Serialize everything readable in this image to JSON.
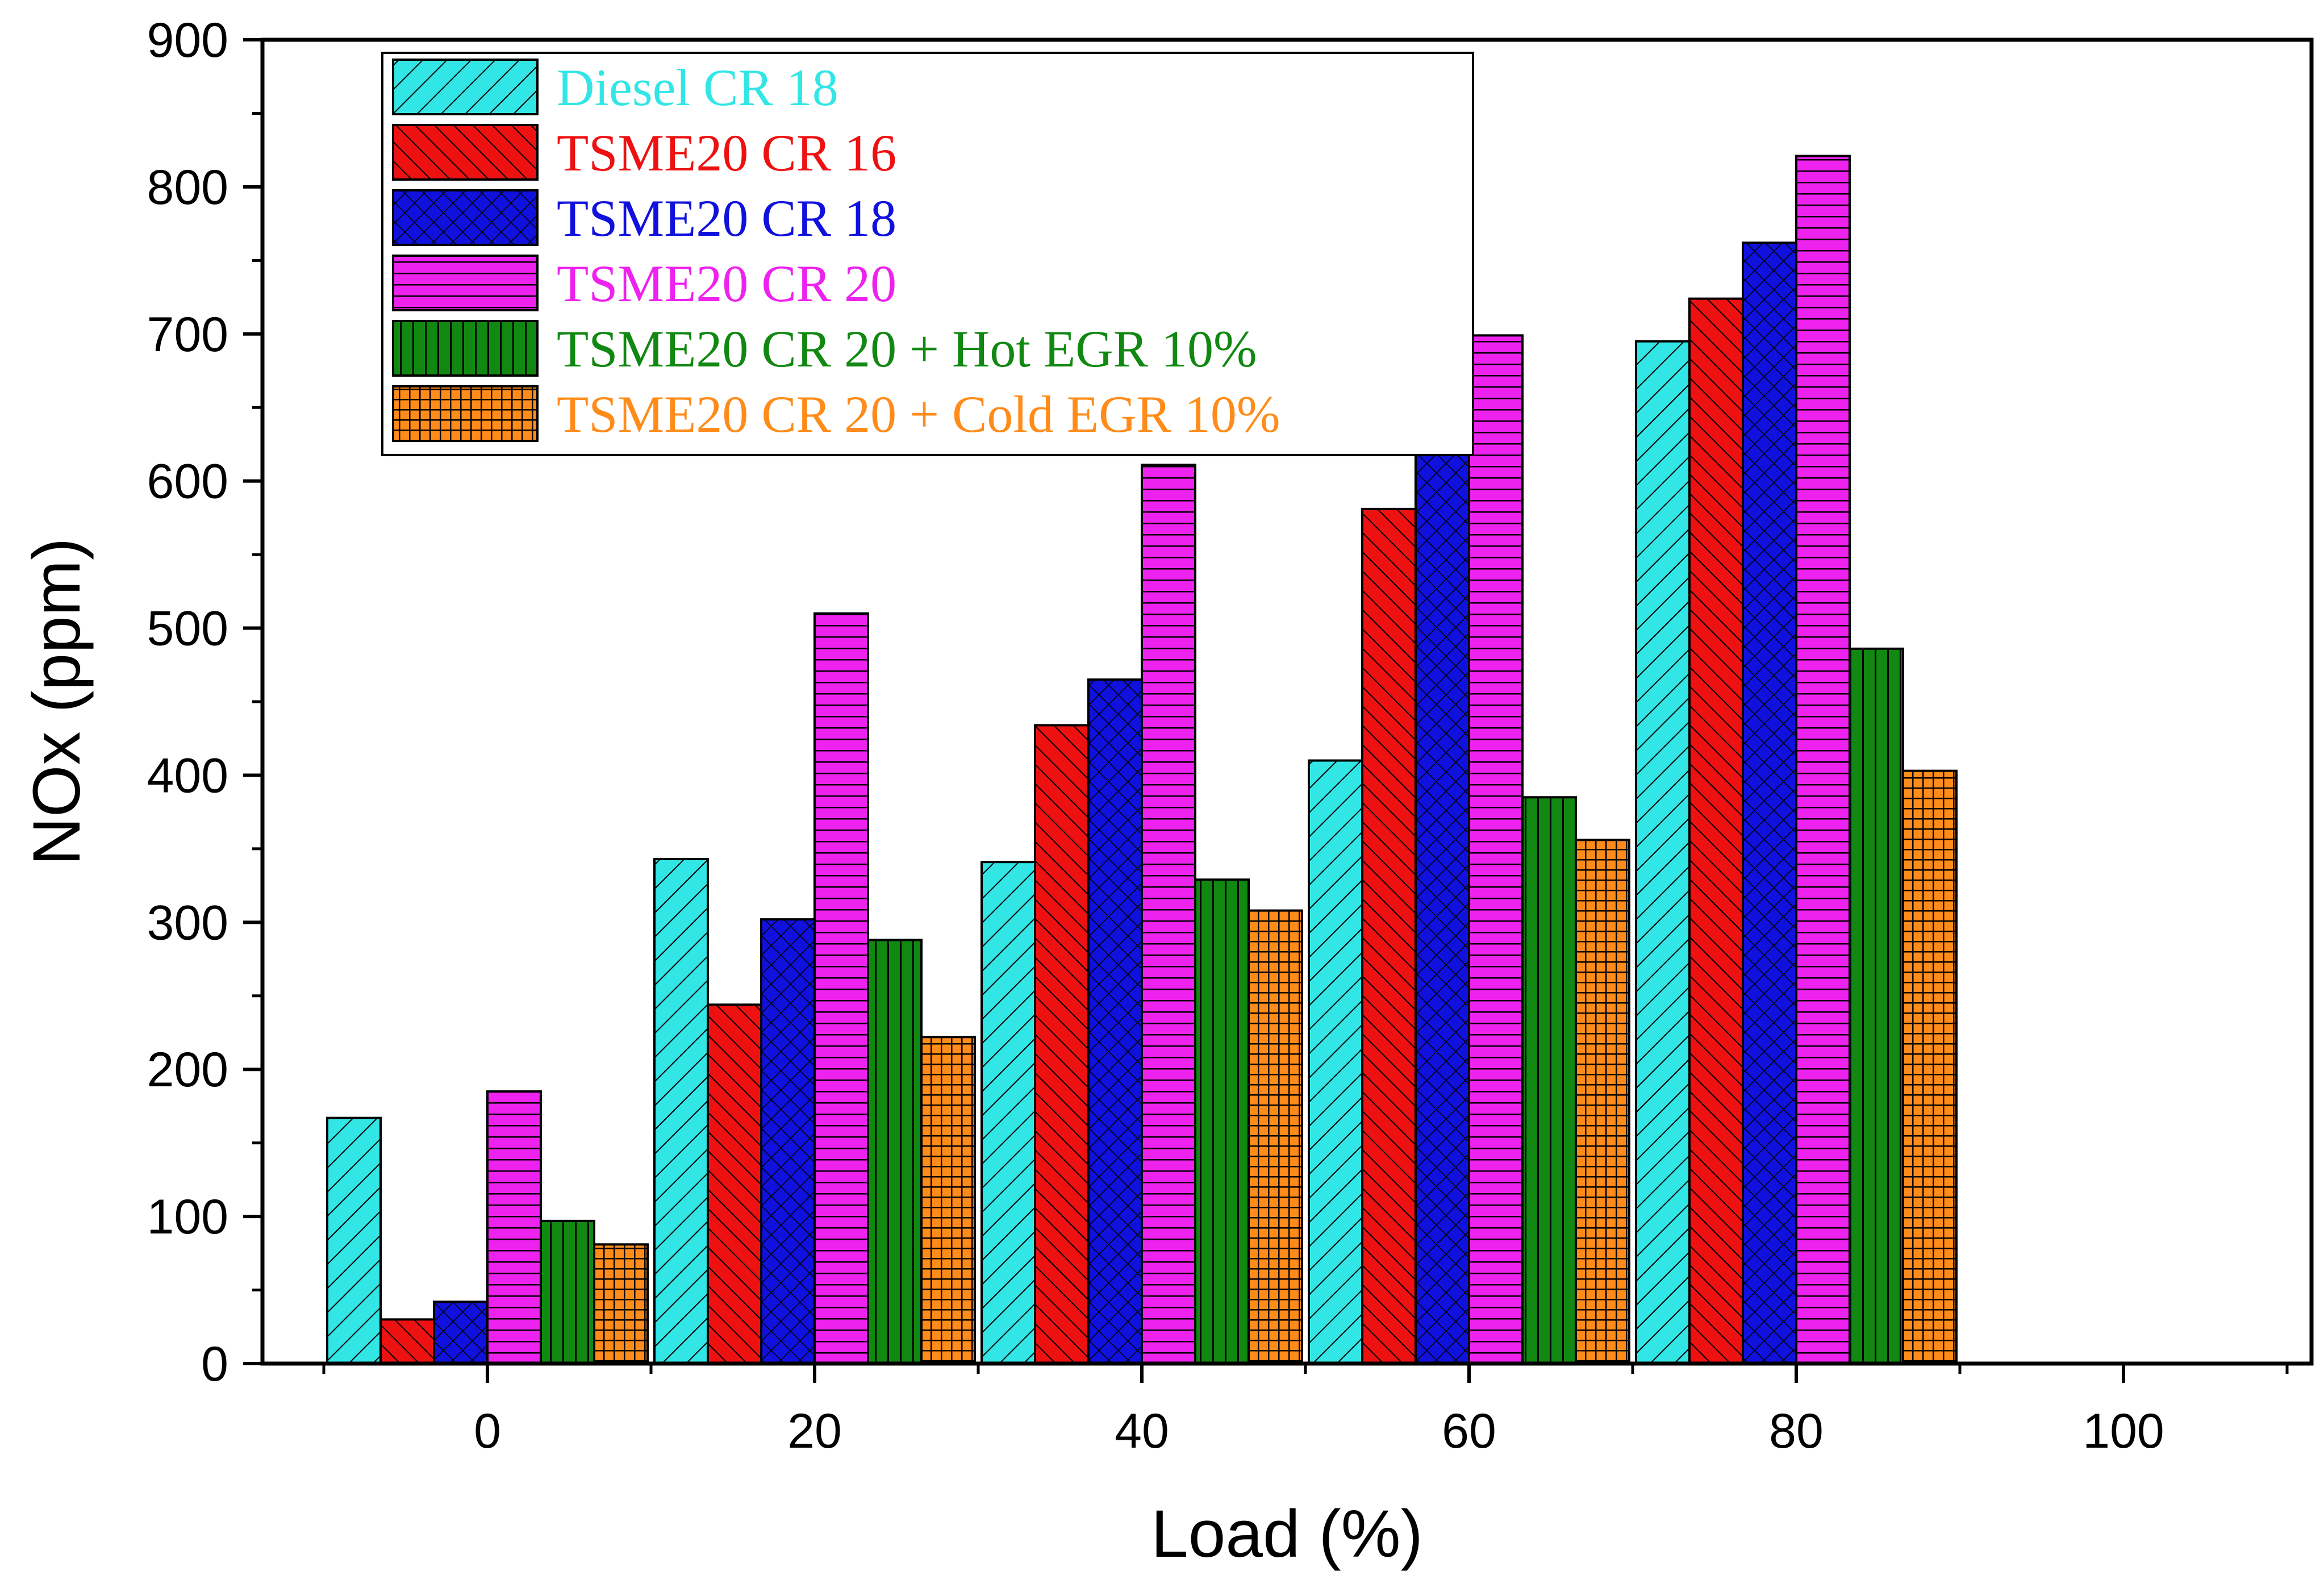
{
  "chart_data": {
    "type": "bar",
    "xlabel": "Load (%)",
    "ylabel": "NOx (ppm)",
    "categories": [
      "0",
      "20",
      "40",
      "60",
      "80",
      "100"
    ],
    "x_values": [
      0,
      20,
      40,
      60,
      80,
      100
    ],
    "x_ticks": [
      "0",
      "20",
      "40",
      "60",
      "80",
      "100"
    ],
    "ylim": [
      0,
      900
    ],
    "y_ticks": [
      "0",
      "100",
      "200",
      "300",
      "400",
      "500",
      "600",
      "700",
      "800",
      "900"
    ],
    "legend_position": "top-left",
    "series": [
      {
        "name": "Diesel CR 18",
        "color": "#33e6e6",
        "pattern": "diag-right",
        "values": [
          167,
          343,
          341,
          410,
          695,
          null
        ]
      },
      {
        "name": "TSME20 CR 16",
        "color": "#ee1111",
        "pattern": "diag-left",
        "values": [
          30,
          244,
          434,
          581,
          724,
          null
        ]
      },
      {
        "name": "TSME20 CR 18",
        "color": "#1111dd",
        "pattern": "crosshatch",
        "values": [
          42,
          302,
          465,
          625,
          762,
          null
        ]
      },
      {
        "name": "TSME20 CR 20",
        "color": "#ee22ee",
        "pattern": "horizontal",
        "values": [
          185,
          510,
          611,
          699,
          821,
          null
        ]
      },
      {
        "name": "TSME20 CR 20 + Hot EGR 10%",
        "color": "#118811",
        "pattern": "vertical",
        "values": [
          97,
          288,
          329,
          385,
          486,
          null
        ]
      },
      {
        "name": "TSME20 CR 20 + Cold EGR 10%",
        "color": "#ff8c1a",
        "pattern": "grid",
        "values": [
          81,
          222,
          308,
          356,
          403,
          null
        ]
      }
    ]
  }
}
